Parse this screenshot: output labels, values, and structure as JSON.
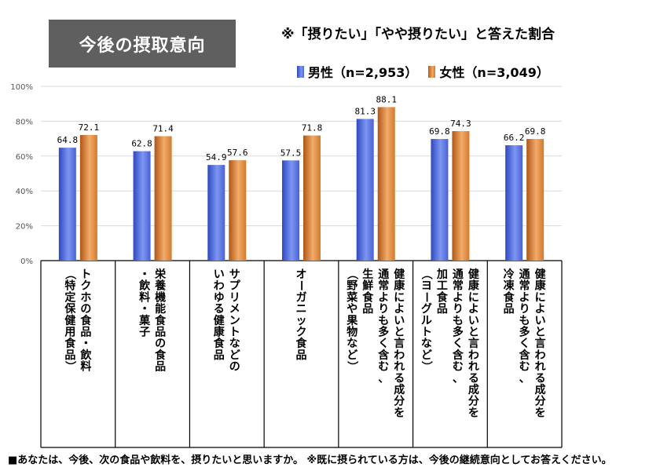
{
  "title": "今後の摂取意向",
  "subtitle": "※「摂りたい」「やや摂りたい」と答えた割合",
  "footnote": "■あなたは、今後、次の食品や飲料を、摂りたいと思いますか。 ※既に摂られている方は、今後の継続意向としてお答えください。",
  "colors": {
    "male": "#4a64d8",
    "female": "#e38a3c",
    "title_bg": "#5f5f5f"
  },
  "chart_data": {
    "type": "bar",
    "ylim": [
      0,
      100
    ],
    "yticks": [
      "0%",
      "20%",
      "40%",
      "60%",
      "80%",
      "100%"
    ],
    "tick_values": [
      0,
      20,
      40,
      60,
      80,
      100
    ],
    "categories": [
      [
        "トクホの食品・飲料",
        "（特定保健用食品）"
      ],
      [
        "栄養機能食品の食品",
        "・飲料・菓子"
      ],
      [
        "サプリメントなどの",
        "いわゆる健康食品"
      ],
      [
        "オーガニック食品"
      ],
      [
        "健康によいと言われる成分を",
        "通常よりも多く含む、",
        "生鮮食品",
        "（野菜や果物など）"
      ],
      [
        "健康によいと言われる成分を",
        "通常よりも多く含む、",
        "加工食品",
        "（ヨーグルトなど）"
      ],
      [
        "健康によいと言われる成分を",
        "通常よりも多く含む、",
        "冷凍食品"
      ]
    ],
    "series": [
      {
        "name": "男性（n=2,953）",
        "values": [
          64.8,
          62.8,
          54.9,
          57.5,
          81.3,
          69.8,
          66.2
        ]
      },
      {
        "name": "女性（n=3,049）",
        "values": [
          72.1,
          71.4,
          57.6,
          71.8,
          88.1,
          74.3,
          69.8
        ]
      }
    ],
    "value_labels": [
      [
        "64.8",
        "62.8",
        "54.9",
        "57.5",
        "81.3",
        "69.8",
        "66.2"
      ],
      [
        "72.1",
        "71.4",
        "57.6",
        "71.8",
        "88.1",
        "74.3",
        "69.8"
      ]
    ]
  }
}
